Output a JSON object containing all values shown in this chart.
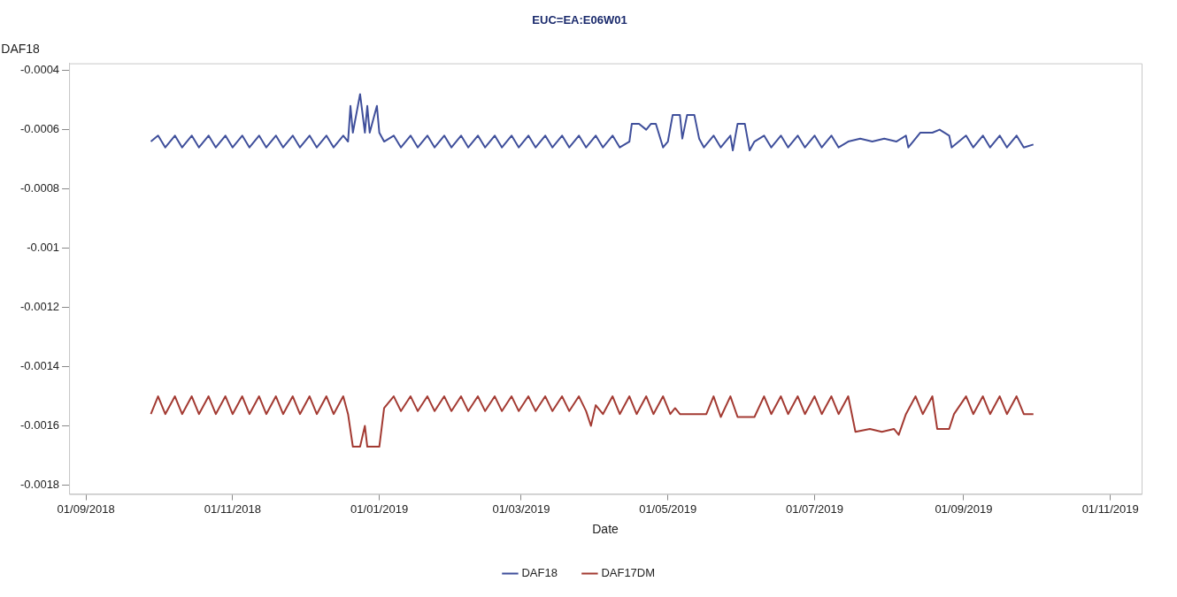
{
  "chart_data": {
    "type": "line",
    "title": "EUC=EA:E06W01",
    "xlabel": "Date",
    "ylabel": "DAF18",
    "legend": "bottom",
    "xlim": [
      "2018-08-25",
      "2019-11-14"
    ],
    "xticks": [
      {
        "value": "2018-09-01",
        "label": "01/09/2018"
      },
      {
        "value": "2018-11-01",
        "label": "01/11/2018"
      },
      {
        "value": "2019-01-01",
        "label": "01/01/2019"
      },
      {
        "value": "2019-03-01",
        "label": "01/03/2019"
      },
      {
        "value": "2019-05-01",
        "label": "01/05/2019"
      },
      {
        "value": "2019-07-01",
        "label": "01/07/2019"
      },
      {
        "value": "2019-09-01",
        "label": "01/09/2019"
      },
      {
        "value": "2019-11-01",
        "label": "01/11/2019"
      }
    ],
    "ylim": [
      -0.00183,
      -0.000376
    ],
    "yticks": [
      -0.0004,
      -0.0006,
      -0.0008,
      -0.001,
      -0.0012,
      -0.0014,
      -0.0016,
      -0.0018
    ],
    "series": [
      {
        "name": "DAF18",
        "color": "#3f4f9b",
        "x": [
          "2018-09-28",
          "2018-10-01",
          "2018-10-04",
          "2018-10-08",
          "2018-10-11",
          "2018-10-15",
          "2018-10-18",
          "2018-10-22",
          "2018-10-25",
          "2018-10-29",
          "2018-11-01",
          "2018-11-05",
          "2018-11-08",
          "2018-11-12",
          "2018-11-15",
          "2018-11-19",
          "2018-11-22",
          "2018-11-26",
          "2018-11-29",
          "2018-12-03",
          "2018-12-06",
          "2018-12-10",
          "2018-12-13",
          "2018-12-17",
          "2018-12-19",
          "2018-12-20",
          "2018-12-21",
          "2018-12-24",
          "2018-12-26",
          "2018-12-27",
          "2018-12-28",
          "2018-12-31",
          "2019-01-01",
          "2019-01-03",
          "2019-01-07",
          "2019-01-10",
          "2019-01-14",
          "2019-01-17",
          "2019-01-21",
          "2019-01-24",
          "2019-01-28",
          "2019-01-31",
          "2019-02-04",
          "2019-02-07",
          "2019-02-11",
          "2019-02-14",
          "2019-02-18",
          "2019-02-21",
          "2019-02-25",
          "2019-02-28",
          "2019-03-04",
          "2019-03-07",
          "2019-03-11",
          "2019-03-14",
          "2019-03-18",
          "2019-03-21",
          "2019-03-25",
          "2019-03-28",
          "2019-04-01",
          "2019-04-04",
          "2019-04-08",
          "2019-04-11",
          "2019-04-15",
          "2019-04-16",
          "2019-04-19",
          "2019-04-22",
          "2019-04-24",
          "2019-04-26",
          "2019-04-29",
          "2019-05-01",
          "2019-05-03",
          "2019-05-06",
          "2019-05-07",
          "2019-05-09",
          "2019-05-12",
          "2019-05-14",
          "2019-05-16",
          "2019-05-20",
          "2019-05-23",
          "2019-05-27",
          "2019-05-28",
          "2019-05-30",
          "2019-06-02",
          "2019-06-04",
          "2019-06-06",
          "2019-06-10",
          "2019-06-13",
          "2019-06-17",
          "2019-06-20",
          "2019-06-24",
          "2019-06-27",
          "2019-07-01",
          "2019-07-04",
          "2019-07-08",
          "2019-07-11",
          "2019-07-15",
          "2019-07-20",
          "2019-07-25",
          "2019-07-30",
          "2019-08-04",
          "2019-08-08",
          "2019-08-09",
          "2019-08-12",
          "2019-08-14",
          "2019-08-19",
          "2019-08-22",
          "2019-08-26",
          "2019-08-27",
          "2019-09-02",
          "2019-09-05",
          "2019-09-09",
          "2019-09-12",
          "2019-09-16",
          "2019-09-19",
          "2019-09-23",
          "2019-09-26",
          "2019-09-30"
        ],
        "values": [
          -0.00064,
          -0.00062,
          -0.00066,
          -0.00062,
          -0.00066,
          -0.00062,
          -0.00066,
          -0.00062,
          -0.00066,
          -0.00062,
          -0.00066,
          -0.00062,
          -0.00066,
          -0.00062,
          -0.00066,
          -0.00062,
          -0.00066,
          -0.00062,
          -0.00066,
          -0.00062,
          -0.00066,
          -0.00062,
          -0.00066,
          -0.00062,
          -0.00064,
          -0.00052,
          -0.00061,
          -0.00048,
          -0.00061,
          -0.00052,
          -0.00061,
          -0.00052,
          -0.00061,
          -0.00064,
          -0.00062,
          -0.00066,
          -0.00062,
          -0.00066,
          -0.00062,
          -0.00066,
          -0.00062,
          -0.00066,
          -0.00062,
          -0.00066,
          -0.00062,
          -0.00066,
          -0.00062,
          -0.00066,
          -0.00062,
          -0.00066,
          -0.00062,
          -0.00066,
          -0.00062,
          -0.00066,
          -0.00062,
          -0.00066,
          -0.00062,
          -0.00066,
          -0.00062,
          -0.00066,
          -0.00062,
          -0.00066,
          -0.00064,
          -0.00058,
          -0.00058,
          -0.0006,
          -0.00058,
          -0.00058,
          -0.00066,
          -0.00064,
          -0.00055,
          -0.00055,
          -0.00063,
          -0.00055,
          -0.00055,
          -0.00063,
          -0.00066,
          -0.00062,
          -0.00066,
          -0.00062,
          -0.00067,
          -0.00058,
          -0.00058,
          -0.00067,
          -0.00064,
          -0.00062,
          -0.00066,
          -0.00062,
          -0.00066,
          -0.00062,
          -0.00066,
          -0.00062,
          -0.00066,
          -0.00062,
          -0.00066,
          -0.00064,
          -0.00063,
          -0.00064,
          -0.00063,
          -0.00064,
          -0.00062,
          -0.00066,
          -0.00063,
          -0.00061,
          -0.00061,
          -0.0006,
          -0.00062,
          -0.00066,
          -0.00062,
          -0.00066,
          -0.00062,
          -0.00066,
          -0.00062,
          -0.00066,
          -0.00062,
          -0.00066,
          -0.00065
        ]
      },
      {
        "name": "DAF17DM",
        "color": "#a33a32",
        "x": [
          "2018-09-28",
          "2018-10-01",
          "2018-10-04",
          "2018-10-08",
          "2018-10-11",
          "2018-10-15",
          "2018-10-18",
          "2018-10-22",
          "2018-10-25",
          "2018-10-29",
          "2018-11-01",
          "2018-11-05",
          "2018-11-08",
          "2018-11-12",
          "2018-11-15",
          "2018-11-19",
          "2018-11-22",
          "2018-11-26",
          "2018-11-29",
          "2018-12-03",
          "2018-12-06",
          "2018-12-10",
          "2018-12-13",
          "2018-12-17",
          "2018-12-19",
          "2018-12-21",
          "2018-12-24",
          "2018-12-26",
          "2018-12-27",
          "2019-01-01",
          "2019-01-03",
          "2019-01-07",
          "2019-01-10",
          "2019-01-14",
          "2019-01-17",
          "2019-01-21",
          "2019-01-24",
          "2019-01-28",
          "2019-01-31",
          "2019-02-04",
          "2019-02-07",
          "2019-02-11",
          "2019-02-14",
          "2019-02-18",
          "2019-02-21",
          "2019-02-25",
          "2019-02-28",
          "2019-03-04",
          "2019-03-07",
          "2019-03-11",
          "2019-03-14",
          "2019-03-18",
          "2019-03-21",
          "2019-03-25",
          "2019-03-28",
          "2019-03-30",
          "2019-04-01",
          "2019-04-04",
          "2019-04-08",
          "2019-04-11",
          "2019-04-15",
          "2019-04-18",
          "2019-04-22",
          "2019-04-25",
          "2019-04-29",
          "2019-05-02",
          "2019-05-04",
          "2019-05-06",
          "2019-05-17",
          "2019-05-20",
          "2019-05-23",
          "2019-05-27",
          "2019-05-30",
          "2019-06-06",
          "2019-06-10",
          "2019-06-13",
          "2019-06-17",
          "2019-06-20",
          "2019-06-24",
          "2019-06-27",
          "2019-07-01",
          "2019-07-04",
          "2019-07-08",
          "2019-07-11",
          "2019-07-15",
          "2019-07-18",
          "2019-07-24",
          "2019-07-29",
          "2019-08-03",
          "2019-08-05",
          "2019-08-08",
          "2019-08-12",
          "2019-08-15",
          "2019-08-19",
          "2019-08-21",
          "2019-08-26",
          "2019-08-28",
          "2019-09-02",
          "2019-09-05",
          "2019-09-09",
          "2019-09-12",
          "2019-09-16",
          "2019-09-19",
          "2019-09-23",
          "2019-09-26",
          "2019-09-30"
        ],
        "values": [
          -0.00156,
          -0.0015,
          -0.00156,
          -0.0015,
          -0.00156,
          -0.0015,
          -0.00156,
          -0.0015,
          -0.00156,
          -0.0015,
          -0.00156,
          -0.0015,
          -0.00156,
          -0.0015,
          -0.00156,
          -0.0015,
          -0.00156,
          -0.0015,
          -0.00156,
          -0.0015,
          -0.00156,
          -0.0015,
          -0.00156,
          -0.0015,
          -0.00156,
          -0.00167,
          -0.00167,
          -0.0016,
          -0.00167,
          -0.00167,
          -0.00154,
          -0.0015,
          -0.00155,
          -0.0015,
          -0.00155,
          -0.0015,
          -0.00155,
          -0.0015,
          -0.00155,
          -0.0015,
          -0.00155,
          -0.0015,
          -0.00155,
          -0.0015,
          -0.00155,
          -0.0015,
          -0.00155,
          -0.0015,
          -0.00155,
          -0.0015,
          -0.00155,
          -0.0015,
          -0.00155,
          -0.0015,
          -0.00155,
          -0.0016,
          -0.00153,
          -0.00156,
          -0.0015,
          -0.00156,
          -0.0015,
          -0.00156,
          -0.0015,
          -0.00156,
          -0.0015,
          -0.00156,
          -0.00154,
          -0.00156,
          -0.00156,
          -0.0015,
          -0.00157,
          -0.0015,
          -0.00157,
          -0.00157,
          -0.0015,
          -0.00156,
          -0.0015,
          -0.00156,
          -0.0015,
          -0.00156,
          -0.0015,
          -0.00156,
          -0.0015,
          -0.00156,
          -0.0015,
          -0.00162,
          -0.00161,
          -0.00162,
          -0.00161,
          -0.00163,
          -0.00156,
          -0.0015,
          -0.00156,
          -0.0015,
          -0.00161,
          -0.00161,
          -0.00156,
          -0.0015,
          -0.00156,
          -0.0015,
          -0.00156,
          -0.0015,
          -0.00156,
          -0.0015,
          -0.00156,
          -0.00156
        ]
      }
    ]
  }
}
